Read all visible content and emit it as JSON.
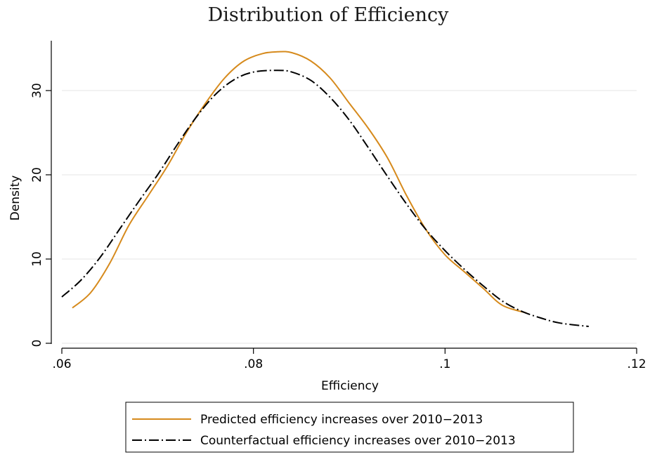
{
  "chart_data": {
    "type": "line",
    "title": "Distribution of Efficiency",
    "xlabel": "Efficiency",
    "ylabel": "Density",
    "xlim": [
      0.06,
      0.12
    ],
    "ylim": [
      0,
      35
    ],
    "xticks": [
      {
        "value": 0.06,
        "label": ".06"
      },
      {
        "value": 0.08,
        "label": ".08"
      },
      {
        "value": 0.1,
        "label": ".1"
      },
      {
        "value": 0.12,
        "label": ".12"
      }
    ],
    "yticks": [
      {
        "value": 0,
        "label": "0"
      },
      {
        "value": 10,
        "label": "10"
      },
      {
        "value": 20,
        "label": "20"
      },
      {
        "value": 30,
        "label": "30"
      }
    ],
    "grid": "horizontal",
    "legend_position": "bottom",
    "series": [
      {
        "name": "Predicted efficiency increases over 2010−2013",
        "color": "#d68a1c",
        "style": "solid",
        "points": [
          [
            0.0611,
            4.2
          ],
          [
            0.063,
            6.0
          ],
          [
            0.065,
            9.5
          ],
          [
            0.067,
            14.0
          ],
          [
            0.069,
            17.5
          ],
          [
            0.071,
            21.0
          ],
          [
            0.073,
            25.0
          ],
          [
            0.075,
            28.5
          ],
          [
            0.077,
            31.5
          ],
          [
            0.079,
            33.5
          ],
          [
            0.081,
            34.4
          ],
          [
            0.0825,
            34.6
          ],
          [
            0.084,
            34.5
          ],
          [
            0.086,
            33.5
          ],
          [
            0.088,
            31.5
          ],
          [
            0.09,
            28.5
          ],
          [
            0.092,
            25.5
          ],
          [
            0.094,
            22.0
          ],
          [
            0.096,
            17.5
          ],
          [
            0.098,
            13.5
          ],
          [
            0.1,
            10.5
          ],
          [
            0.102,
            8.5
          ],
          [
            0.104,
            6.5
          ],
          [
            0.106,
            4.5
          ],
          [
            0.1085,
            3.6
          ]
        ]
      },
      {
        "name": "Counterfactual efficiency increases over 2010−2013",
        "color": "#000000",
        "style": "dash-dot",
        "points": [
          [
            0.06,
            5.5
          ],
          [
            0.062,
            7.5
          ],
          [
            0.064,
            10.2
          ],
          [
            0.066,
            13.5
          ],
          [
            0.068,
            16.8
          ],
          [
            0.07,
            20.0
          ],
          [
            0.072,
            23.5
          ],
          [
            0.074,
            26.8
          ],
          [
            0.076,
            29.5
          ],
          [
            0.078,
            31.3
          ],
          [
            0.08,
            32.2
          ],
          [
            0.0825,
            32.4
          ],
          [
            0.084,
            32.2
          ],
          [
            0.086,
            31.2
          ],
          [
            0.088,
            29.2
          ],
          [
            0.09,
            26.5
          ],
          [
            0.092,
            23.2
          ],
          [
            0.094,
            19.8
          ],
          [
            0.096,
            16.5
          ],
          [
            0.098,
            13.5
          ],
          [
            0.1,
            11.0
          ],
          [
            0.102,
            8.8
          ],
          [
            0.104,
            6.8
          ],
          [
            0.106,
            5.0
          ],
          [
            0.108,
            3.8
          ],
          [
            0.11,
            3.0
          ],
          [
            0.112,
            2.4
          ],
          [
            0.115,
            2.0
          ]
        ]
      }
    ]
  }
}
